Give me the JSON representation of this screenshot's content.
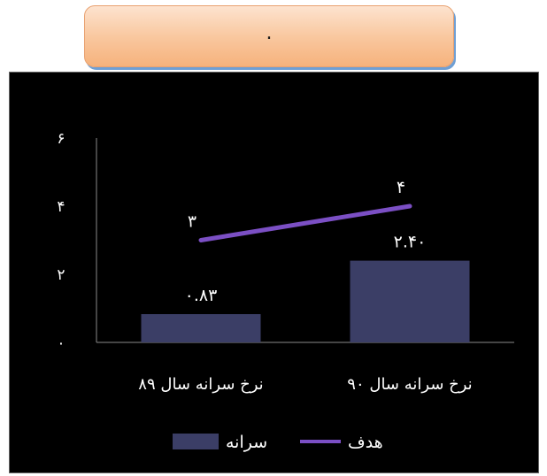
{
  "header": {
    "title": "."
  },
  "chart_data": {
    "type": "bar",
    "categories": [
      "نرخ سرانه سال ۸۹",
      "نرخ سرانه سال ۹۰"
    ],
    "ylim": [
      0,
      6
    ],
    "yticks": [
      "۰",
      "۲",
      "۴",
      "۶"
    ],
    "ytick_values": [
      0,
      2,
      4,
      6
    ],
    "grid": false,
    "legend_position": "bottom",
    "series": [
      {
        "name": "سرانه",
        "type": "bar",
        "values": [
          0.83,
          2.4
        ],
        "value_labels": [
          "۰.۸۳",
          "۲.۴۰"
        ],
        "color": "#3b3e66"
      },
      {
        "name": "هدف",
        "type": "line",
        "values": [
          3,
          4
        ],
        "value_labels": [
          "۳",
          "۴"
        ],
        "color": "#7b4fc4"
      }
    ]
  }
}
